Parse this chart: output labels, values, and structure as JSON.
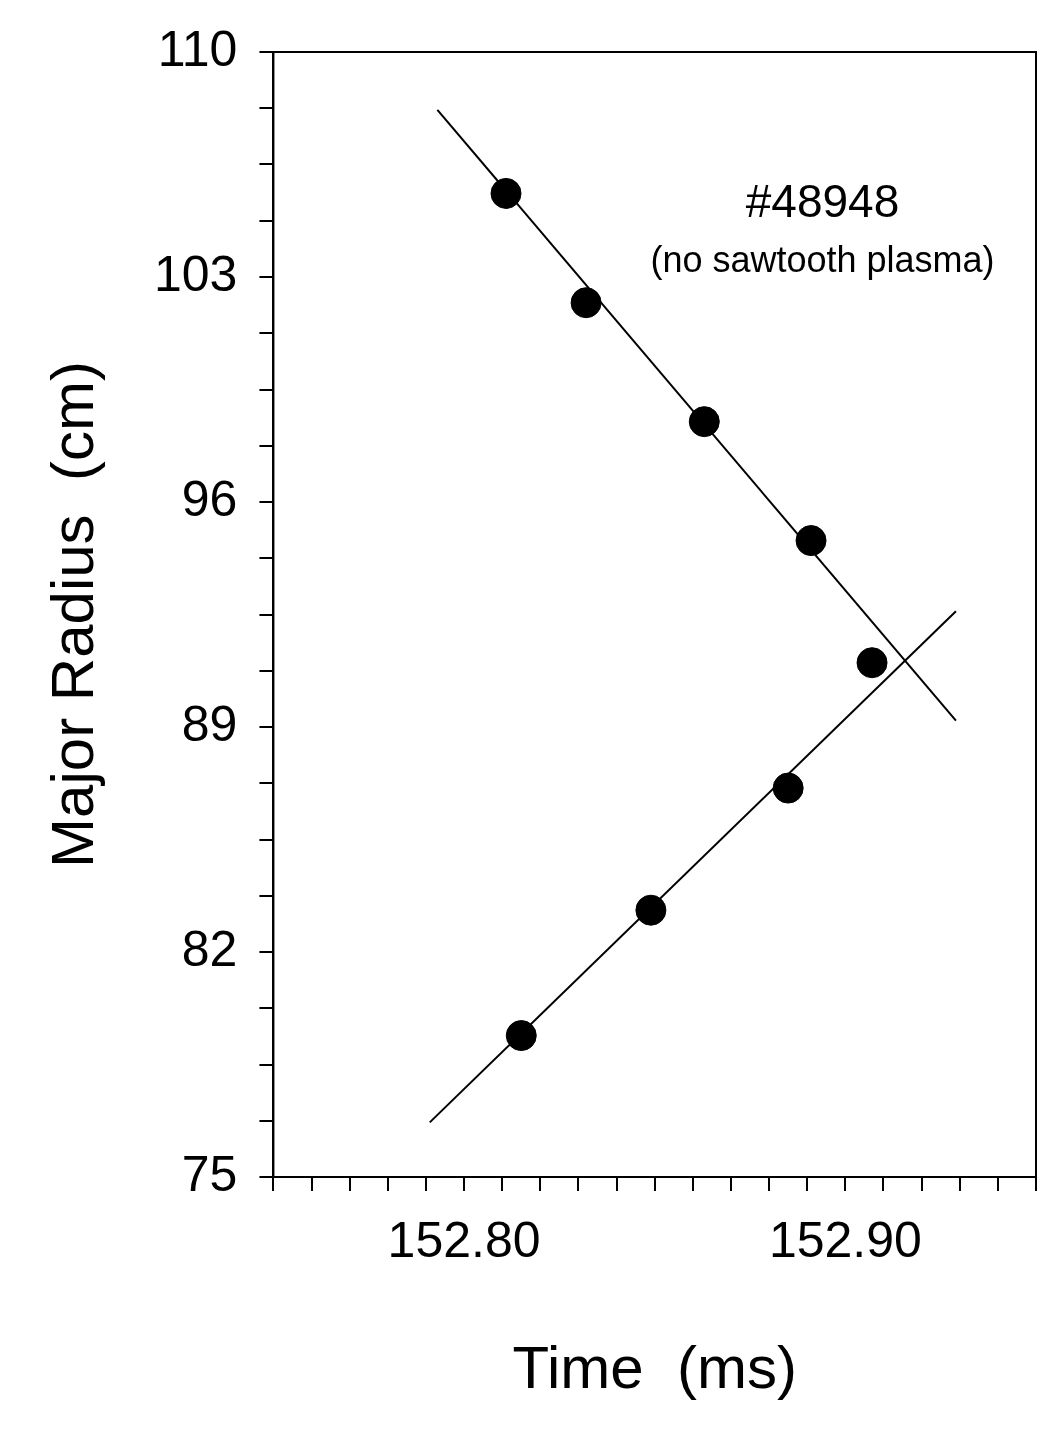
{
  "chart_data": {
    "type": "scatter",
    "xlabel": "Time  (ms)",
    "ylabel": "Major Radius  (cm)",
    "annotations": [
      "#48948",
      "(no sawtooth plasma)"
    ],
    "xlim": [
      152.75,
      152.95
    ],
    "xticks": [
      {
        "value": 152.75,
        "label": null
      },
      {
        "value": 152.76,
        "label": null
      },
      {
        "value": 152.77,
        "label": null
      },
      {
        "value": 152.78,
        "label": null
      },
      {
        "value": 152.79,
        "label": null
      },
      {
        "value": 152.8,
        "label": "152.80"
      },
      {
        "value": 152.81,
        "label": null
      },
      {
        "value": 152.82,
        "label": null
      },
      {
        "value": 152.83,
        "label": null
      },
      {
        "value": 152.84,
        "label": null
      },
      {
        "value": 152.85,
        "label": null
      },
      {
        "value": 152.86,
        "label": null
      },
      {
        "value": 152.87,
        "label": null
      },
      {
        "value": 152.88,
        "label": null
      },
      {
        "value": 152.89,
        "label": null
      },
      {
        "value": 152.9,
        "label": "152.90"
      },
      {
        "value": 152.91,
        "label": null
      },
      {
        "value": 152.92,
        "label": null
      },
      {
        "value": 152.93,
        "label": null
      },
      {
        "value": 152.94,
        "label": null
      },
      {
        "value": 152.95,
        "label": null
      }
    ],
    "ylim": [
      75,
      110
    ],
    "yticks": [
      75,
      {
        "value": 76.75,
        "label": null
      },
      {
        "value": 78.5,
        "label": null
      },
      {
        "value": 80.25,
        "label": null
      },
      82,
      {
        "value": 83.75,
        "label": null
      },
      {
        "value": 85.5,
        "label": null
      },
      {
        "value": 87.25,
        "label": null
      },
      89,
      {
        "value": 90.75,
        "label": null
      },
      {
        "value": 92.5,
        "label": null
      },
      {
        "value": 94.25,
        "label": null
      },
      96,
      {
        "value": 97.75,
        "label": null
      },
      {
        "value": 99.5,
        "label": null
      },
      {
        "value": 101.25,
        "label": null
      },
      103,
      {
        "value": 104.75,
        "label": null
      },
      {
        "value": 106.5,
        "label": null
      },
      {
        "value": 108.25,
        "label": null
      },
      110
    ],
    "series": [
      {
        "type": "line",
        "x": [
          152.793,
          152.929
        ],
        "values": [
          108.2,
          89.2
        ],
        "color": "#000000",
        "marker": "none",
        "line_style": "solid"
      },
      {
        "type": "line",
        "x": [
          152.791,
          152.929
        ],
        "values": [
          76.7,
          92.6
        ],
        "color": "#000000",
        "marker": "none",
        "line_style": "solid"
      },
      {
        "type": "scatter",
        "x": [
          152.811,
          152.832,
          152.863,
          152.891,
          152.907,
          152.885,
          152.849,
          152.815
        ],
        "values": [
          105.6,
          102.2,
          98.5,
          94.8,
          91.0,
          87.1,
          83.3,
          79.4
        ],
        "color": "#000000",
        "marker": "circle"
      }
    ]
  }
}
